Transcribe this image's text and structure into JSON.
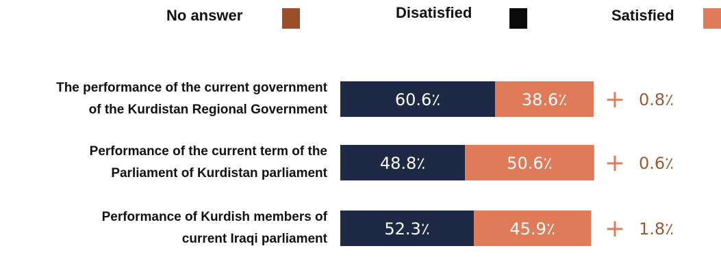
{
  "chart_data": {
    "type": "bar",
    "orientation": "horizontal",
    "stacked": true,
    "categories": [
      [
        "The performance of the current government",
        "of the Kurdistan Regional Government"
      ],
      [
        "Performance of the current term of the",
        "Parliament of Kurdistan parliament"
      ],
      [
        "Performance of Kurdish members of",
        "current Iraqi parliament"
      ]
    ],
    "series": [
      {
        "name": "Disatisfied",
        "values": [
          60.6,
          48.8,
          52.3
        ],
        "labels": [
          "60.6٪",
          "48.8٪",
          "52.3٪"
        ]
      },
      {
        "name": "Satisfied",
        "values": [
          38.6,
          50.6,
          45.9
        ],
        "labels": [
          "38.6٪",
          "50.6٪",
          "45.9٪"
        ]
      },
      {
        "name": "No answer",
        "values": [
          0.8,
          0.6,
          1.8
        ],
        "labels": [
          "0.8٪",
          "0.6٪",
          "1.8٪"
        ]
      }
    ],
    "plus_sign": "+",
    "legend": {
      "placement": "top",
      "items": [
        {
          "label": "No answer",
          "color": "#9a4f2a"
        },
        {
          "label": "Disatisfied",
          "color": "#0b0b0b"
        },
        {
          "label": "Satisfied",
          "color": "#df7b59"
        }
      ]
    },
    "colors": {
      "dissatisfied": "#1e2a45",
      "satisfied": "#df7b59",
      "no_answer_text": "#9a5a35",
      "plus": "#df7b59"
    },
    "title": "",
    "xlabel": "",
    "ylabel": ""
  }
}
